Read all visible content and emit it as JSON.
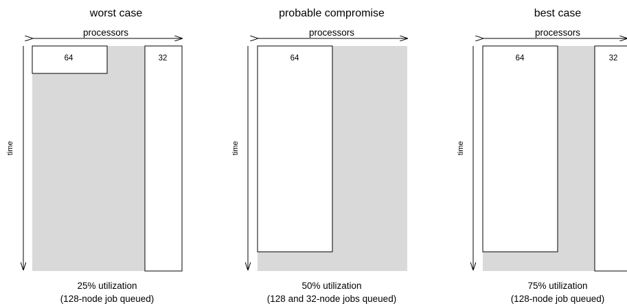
{
  "colors": {
    "idle": "#d9d9d9",
    "job": "#ffffff",
    "line": "#000000"
  },
  "panels": [
    {
      "id": "worst-case",
      "title": "worst case",
      "x_axis_label": "processors",
      "y_axis_label": "time",
      "jobs": [
        {
          "label": "64"
        },
        {
          "label": "32"
        }
      ],
      "utilization_text": "25% utilization",
      "queue_text": "(128-node job queued)"
    },
    {
      "id": "probable-compromise",
      "title": "probable compromise",
      "x_axis_label": "processors",
      "y_axis_label": "time",
      "jobs": [
        {
          "label": "64"
        }
      ],
      "utilization_text": "50% utilization",
      "queue_text": "(128 and 32-node jobs queued)"
    },
    {
      "id": "best-case",
      "title": "best case",
      "x_axis_label": "processors",
      "y_axis_label": "time",
      "jobs": [
        {
          "label": "64"
        },
        {
          "label": "32"
        }
      ],
      "utilization_text": "75% utilization",
      "queue_text": "(128-node job queued)"
    }
  ]
}
